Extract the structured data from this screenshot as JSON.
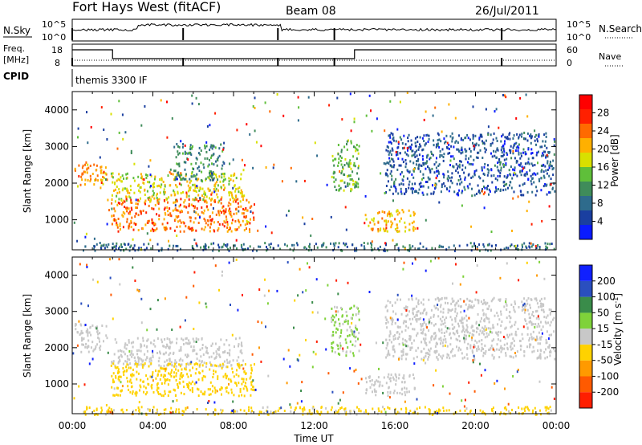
{
  "header": {
    "station": "Fort Hays West (fitACF)",
    "beam": "Beam 08",
    "date": "26/Jul/2011"
  },
  "strip1": {
    "left_label": "N.Sky",
    "right_label": "N.Search",
    "ticks": [
      "10^5",
      "10^0"
    ],
    "right_ticks": [
      "10^5",
      "10^0"
    ]
  },
  "strip2": {
    "left_label_1": "Freq.",
    "left_label_2": "[MHz]",
    "right_label": "Nave",
    "left_ticks": [
      "18",
      "8"
    ],
    "right_ticks": [
      "60",
      "0"
    ]
  },
  "cpid": {
    "label": "CPID",
    "value": "themis 3300 IF"
  },
  "colors": {
    "power_scale": [
      "#0a1bff",
      "#1a3fa0",
      "#2e6b8c",
      "#3f8c5a",
      "#5fbf3a",
      "#d8e000",
      "#ffb000",
      "#ff6a00",
      "#ff2000",
      "#ff0000"
    ],
    "velocity_scale": [
      "#1020ff",
      "#2a4fbf",
      "#3a8c4a",
      "#7fd23a",
      "#c8c8c8",
      "#ffd200",
      "#ff9a00",
      "#ff5a00",
      "#ff1e00"
    ]
  },
  "chart_data": [
    {
      "type": "heatmap",
      "name": "power",
      "ylabel": "Slant Range [km]",
      "ylim": [
        180,
        4500
      ],
      "yticks": [
        "1000",
        "2000",
        "3000",
        "4000"
      ],
      "xlim": [
        0,
        24
      ],
      "colorbar_label": "Power [dB]",
      "colorbar_ticks": [
        "28",
        "24",
        "20",
        "16",
        "12",
        "8",
        "4"
      ],
      "colorbar_range": [
        0,
        32
      ],
      "bands": [
        {
          "t0": 0.1,
          "t1": 1.7,
          "r0": 1900,
          "r1": 2600,
          "level": 22
        },
        {
          "t0": 1.9,
          "t1": 8.5,
          "r0": 1500,
          "r1": 2300,
          "level": 18
        },
        {
          "t0": 1.9,
          "t1": 9.0,
          "r0": 700,
          "r1": 1600,
          "level": 24
        },
        {
          "t0": 5.0,
          "t1": 7.5,
          "r0": 2100,
          "r1": 3100,
          "level": 10
        },
        {
          "t0": 12.8,
          "t1": 14.2,
          "r0": 1800,
          "r1": 3200,
          "level": 14
        },
        {
          "t0": 14.5,
          "t1": 17.0,
          "r0": 700,
          "r1": 1300,
          "level": 20
        },
        {
          "t0": 15.5,
          "t1": 23.9,
          "r0": 1700,
          "r1": 3400,
          "level": 6
        },
        {
          "t0": 0.5,
          "t1": 23.9,
          "r0": 180,
          "r1": 400,
          "level": 8
        }
      ]
    },
    {
      "type": "heatmap",
      "name": "velocity",
      "ylabel": "Slant Range [km]",
      "ylim": [
        180,
        4500
      ],
      "yticks": [
        "1000",
        "2000",
        "3000",
        "4000"
      ],
      "xlim": [
        0,
        24
      ],
      "xticks": [
        "00:00",
        "04:00",
        "08:00",
        "12:00",
        "16:00",
        "20:00",
        "00:00"
      ],
      "xlabel": "Time UT",
      "colorbar_label": "Velocity [m s^-1]",
      "colorbar_ticks": [
        "200",
        "100",
        "50",
        "15",
        "-15",
        "-50",
        "-100",
        "-200"
      ],
      "colorbar_range": [
        -250,
        250
      ],
      "bands": [
        {
          "t0": 0.1,
          "t1": 1.7,
          "r0": 1900,
          "r1": 2700,
          "level": 0
        },
        {
          "t0": 1.9,
          "t1": 8.5,
          "r0": 1500,
          "r1": 2300,
          "level": 0
        },
        {
          "t0": 1.9,
          "t1": 9.0,
          "r0": 700,
          "r1": 1600,
          "level": -60
        },
        {
          "t0": 12.8,
          "t1": 14.2,
          "r0": 1800,
          "r1": 3200,
          "level": 30
        },
        {
          "t0": 14.5,
          "t1": 17.0,
          "r0": 700,
          "r1": 1300,
          "level": 0
        },
        {
          "t0": 15.5,
          "t1": 23.9,
          "r0": 1700,
          "r1": 3400,
          "level": 0
        },
        {
          "t0": 0.5,
          "t1": 23.9,
          "r0": 180,
          "r1": 400,
          "level": -40
        }
      ]
    }
  ]
}
